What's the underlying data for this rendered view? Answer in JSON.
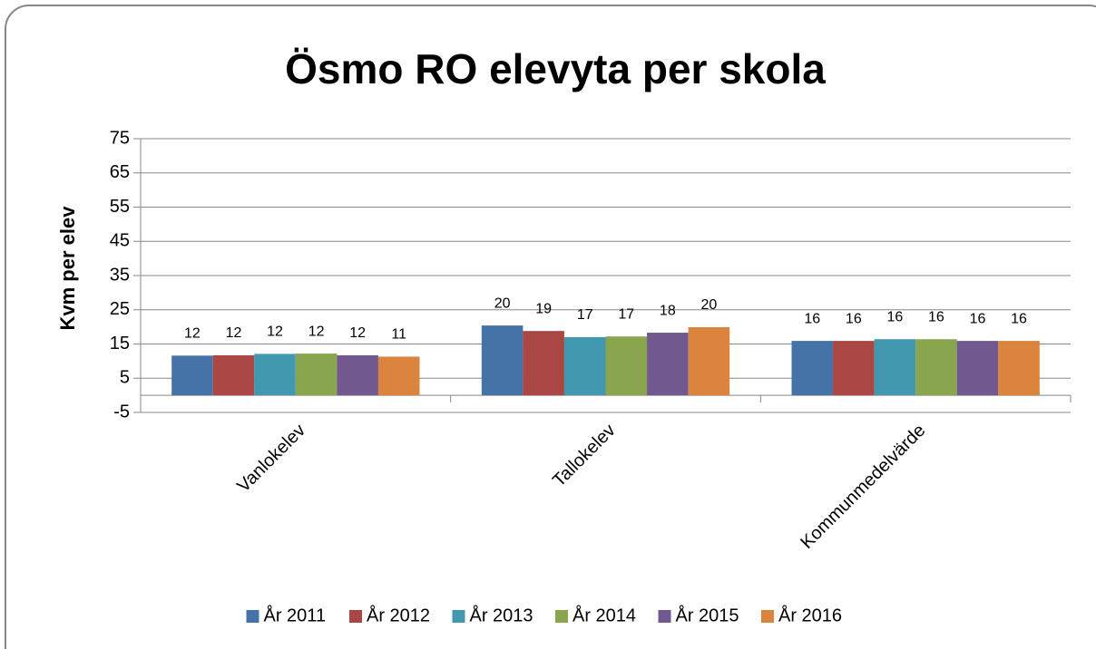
{
  "chart_data": {
    "type": "bar",
    "title": "Ösmo RO elevyta per skola",
    "y_label": "Kvm per elev",
    "categories": [
      "Vanlokelev",
      "Tallokelev",
      "Kommunmedelvärde"
    ],
    "series": [
      {
        "name": "År 2011",
        "color": "#4572a7",
        "values": [
          11.6,
          20.4,
          15.9
        ],
        "value_labels": [
          "12",
          "20",
          "16"
        ]
      },
      {
        "name": "År 2012",
        "color": "#aa4643",
        "values": [
          11.7,
          18.8,
          15.9
        ],
        "value_labels": [
          "12",
          "19",
          "16"
        ]
      },
      {
        "name": "År 2013",
        "color": "#4198af",
        "values": [
          12.1,
          17.0,
          16.4
        ],
        "value_labels": [
          "12",
          "17",
          "16"
        ]
      },
      {
        "name": "År 2014",
        "color": "#89a54e",
        "values": [
          12.2,
          17.2,
          16.4
        ],
        "value_labels": [
          "12",
          "17",
          "16"
        ]
      },
      {
        "name": "År 2015",
        "color": "#71588f",
        "values": [
          11.7,
          18.3,
          15.9
        ],
        "value_labels": [
          "12",
          "18",
          "16"
        ]
      },
      {
        "name": "År 2016",
        "color": "#db843d",
        "values": [
          11.3,
          19.9,
          15.9
        ],
        "value_labels": [
          "11",
          "20",
          "16"
        ]
      }
    ],
    "ylim": [
      -5,
      75
    ],
    "yticks": [
      -5,
      5,
      15,
      25,
      35,
      45,
      55,
      65,
      75
    ],
    "grid": true,
    "legend": "bottom"
  }
}
